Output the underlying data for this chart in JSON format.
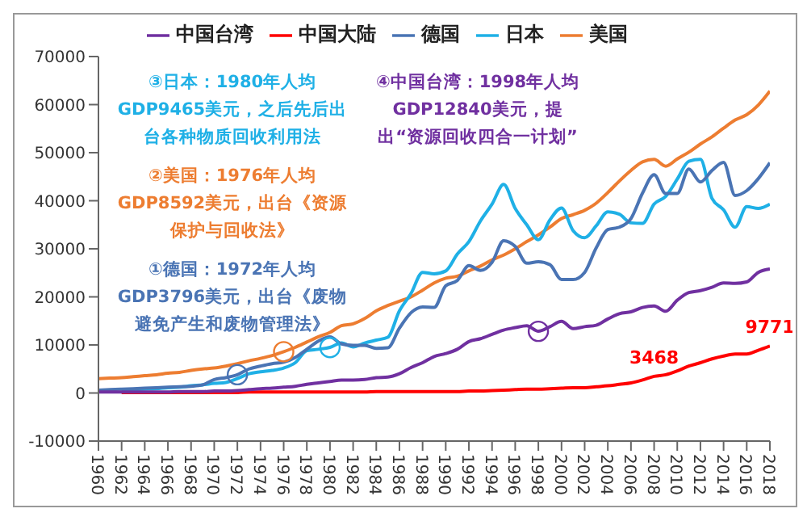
{
  "chart_data": {
    "type": "line",
    "x": [
      1960,
      1961,
      1962,
      1963,
      1964,
      1965,
      1966,
      1967,
      1968,
      1969,
      1970,
      1971,
      1972,
      1973,
      1974,
      1975,
      1976,
      1977,
      1978,
      1979,
      1980,
      1981,
      1982,
      1983,
      1984,
      1985,
      1986,
      1987,
      1988,
      1989,
      1990,
      1991,
      1992,
      1993,
      1994,
      1995,
      1996,
      1997,
      1998,
      1999,
      2000,
      2001,
      2002,
      2003,
      2004,
      2005,
      2006,
      2007,
      2008,
      2009,
      2010,
      2011,
      2012,
      2013,
      2014,
      2015,
      2016,
      2017,
      2018
    ],
    "series": [
      {
        "name": "美国",
        "color": "#ed7d31",
        "values": [
          3000,
          3100,
          3200,
          3400,
          3600,
          3800,
          4100,
          4300,
          4700,
          5000,
          5200,
          5600,
          6100,
          6700,
          7200,
          7800,
          8600,
          9500,
          10600,
          11700,
          12600,
          14000,
          14400,
          15500,
          17100,
          18200,
          19100,
          20000,
          21400,
          22900,
          23900,
          24300,
          25400,
          26400,
          27700,
          28700,
          30000,
          31500,
          32900,
          34500,
          36300,
          37100,
          38000,
          39500,
          41700,
          44100,
          46300,
          48100,
          48600,
          47200,
          48700,
          50100,
          51800,
          53300,
          55100,
          56800,
          57900,
          59900,
          62800
        ]
      },
      {
        "name": "日本",
        "color": "#1fb0e6",
        "values": [
          null,
          null,
          600,
          700,
          800,
          900,
          1100,
          1200,
          1500,
          1700,
          2000,
          2200,
          3000,
          4000,
          4400,
          4700,
          5200,
          6300,
          8800,
          9100,
          9500,
          10400,
          9600,
          10400,
          11000,
          11600,
          17100,
          20700,
          25100,
          24800,
          25400,
          28900,
          31500,
          35800,
          39300,
          43400,
          38400,
          35000,
          31900,
          36000,
          38500,
          33800,
          32300,
          34800,
          37700,
          37200,
          35400,
          35300,
          39300,
          40900,
          44500,
          48200,
          48600,
          40500,
          38100,
          34500,
          38800,
          38400,
          39300
        ]
      },
      {
        "name": "德国",
        "color": "#4a74b4",
        "values": [
          600,
          700,
          800,
          900,
          1000,
          1100,
          1200,
          1300,
          1400,
          1700,
          2800,
          3200,
          3800,
          5000,
          5600,
          6100,
          6400,
          7400,
          9100,
          10800,
          11700,
          10200,
          9900,
          9900,
          9300,
          9400,
          13500,
          16700,
          17900,
          17800,
          22300,
          23400,
          26500,
          25500,
          27200,
          31700,
          30500,
          27000,
          27300,
          26700,
          23600,
          23600,
          25100,
          30200,
          34000,
          34500,
          36300,
          41600,
          45400,
          41500,
          41500,
          46600,
          43900,
          46300,
          48000,
          41100,
          42100,
          44600,
          47900
        ]
      },
      {
        "name": "中国大陆",
        "color": "#ff0000",
        "values": [
          null,
          null,
          100,
          100,
          100,
          100,
          100,
          100,
          100,
          100,
          100,
          100,
          100,
          200,
          200,
          200,
          200,
          200,
          200,
          200,
          200,
          200,
          200,
          200,
          300,
          300,
          300,
          300,
          300,
          300,
          300,
          300,
          400,
          400,
          500,
          600,
          700,
          800,
          800,
          900,
          1000,
          1100,
          1100,
          1300,
          1500,
          1800,
          2100,
          2700,
          3468,
          3800,
          4600,
          5600,
          6300,
          7100,
          7700,
          8100,
          8100,
          8900,
          9771
        ],
        "value_labels": [
          null,
          null,
          null,
          null,
          null,
          null,
          null,
          null,
          null,
          null,
          null,
          null,
          null,
          null,
          null,
          null,
          null,
          null,
          null,
          null,
          null,
          null,
          null,
          null,
          null,
          null,
          null,
          null,
          null,
          null,
          null,
          null,
          null,
          null,
          null,
          null,
          null,
          null,
          null,
          null,
          null,
          null,
          null,
          null,
          null,
          null,
          null,
          null,
          "3468",
          null,
          null,
          null,
          null,
          null,
          null,
          null,
          null,
          null,
          "9771"
        ]
      },
      {
        "name": "中国台湾",
        "color": "#7030a0",
        "values": [
          200,
          200,
          200,
          200,
          200,
          200,
          200,
          300,
          300,
          300,
          400,
          400,
          500,
          700,
          900,
          1000,
          1200,
          1400,
          1800,
          2100,
          2400,
          2700,
          2700,
          2800,
          3200,
          3300,
          4000,
          5300,
          6300,
          7600,
          8200,
          9100,
          10700,
          11300,
          12200,
          13100,
          13600,
          14000,
          12840,
          13800,
          14900,
          13400,
          13800,
          14100,
          15400,
          16500,
          16900,
          17800,
          18100,
          17000,
          19300,
          20900,
          21300,
          22000,
          22900,
          22800,
          23100,
          25100,
          25800
        ]
      },
      {
        "type": "scatter",
        "marker": "circle",
        "x": [
          1972,
          1976,
          1980,
          1998
        ],
        "values": [
          3796,
          8592,
          9465,
          12840
        ],
        "colors": [
          "#4a74b4",
          "#ed7d31",
          "#1fb0e6",
          "#7030a0"
        ]
      }
    ],
    "xlim": [
      1960,
      2018
    ],
    "xticks": [
      1960,
      1962,
      1964,
      1966,
      1968,
      1970,
      1972,
      1974,
      1976,
      1978,
      1980,
      1982,
      1984,
      1986,
      1988,
      1990,
      1992,
      1994,
      1996,
      1998,
      2000,
      2002,
      2004,
      2006,
      2008,
      2010,
      2012,
      2014,
      2016,
      2018
    ],
    "ylim": [
      -10000,
      70000
    ],
    "yticks": [
      -10000,
      0,
      10000,
      20000,
      30000,
      40000,
      50000,
      60000,
      70000
    ],
    "grid": false,
    "legend": "top",
    "marker": "none",
    "line_style": "solid",
    "annotations": [
      "③日本：1980年人均GDP9465美元，之后先后出台各种物质回收利用法",
      "②美国：1976年人均GDP8592美元，出台《资源保护与回收法》",
      "①德国：1972年人均GDP3796美元，出台《废物避免产生和废物管理法》",
      "④中国台湾：1998年人均GDP12840美元，提出“资源回收四合一计划”"
    ]
  }
}
